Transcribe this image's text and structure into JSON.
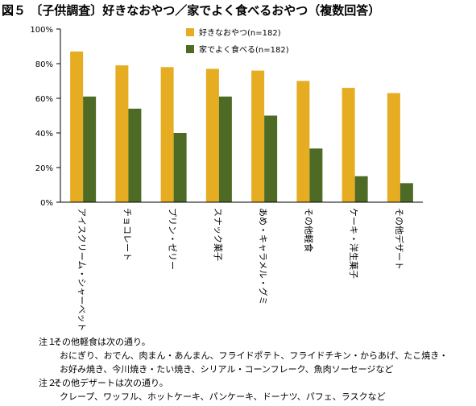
{
  "title": "図５ 〔子供調査〕好きなおやつ／家でよく食べるおやつ（複数回答）",
  "chart_data": {
    "type": "bar",
    "categories": [
      "アイスクリーム・シャーベット",
      "チョコレート",
      "プリン・ゼリー",
      "スナック菓子",
      "あめ・キャラメル・グミ",
      "その他軽食",
      "ケーキ・洋生菓子",
      "その他デザート"
    ],
    "series": [
      {
        "name": "好きなおやつ(n=182)",
        "color": "#e6ad22",
        "values": [
          87,
          79,
          78,
          77,
          76,
          70,
          66,
          63
        ]
      },
      {
        "name": "家でよく食べる(n=182)",
        "color": "#4e6b26",
        "values": [
          61,
          54,
          40,
          61,
          50,
          31,
          15,
          11
        ]
      }
    ],
    "yticks": [
      "100%",
      "80%",
      "60%",
      "40%",
      "20%",
      "0%"
    ],
    "ylim": [
      0,
      100
    ],
    "grid": false,
    "legend": "top-right"
  },
  "notes": [
    {
      "label": "注１：",
      "text": "その他軽食は次の通り。",
      "details": [
        "おにぎり、おでん、肉まん・あんまん、フライドポテト、フライドチキン・からあげ、たこ焼き・",
        "お好み焼き、今川焼き・たい焼き、シリアル・コーンフレーク、魚肉ソーセージなど"
      ]
    },
    {
      "label": "注２：",
      "text": "その他デザートは次の通り。",
      "details": [
        "クレープ、ワッフル、ホットケーキ、パンケーキ、ドーナツ、パフェ、ラスクなど"
      ]
    }
  ]
}
